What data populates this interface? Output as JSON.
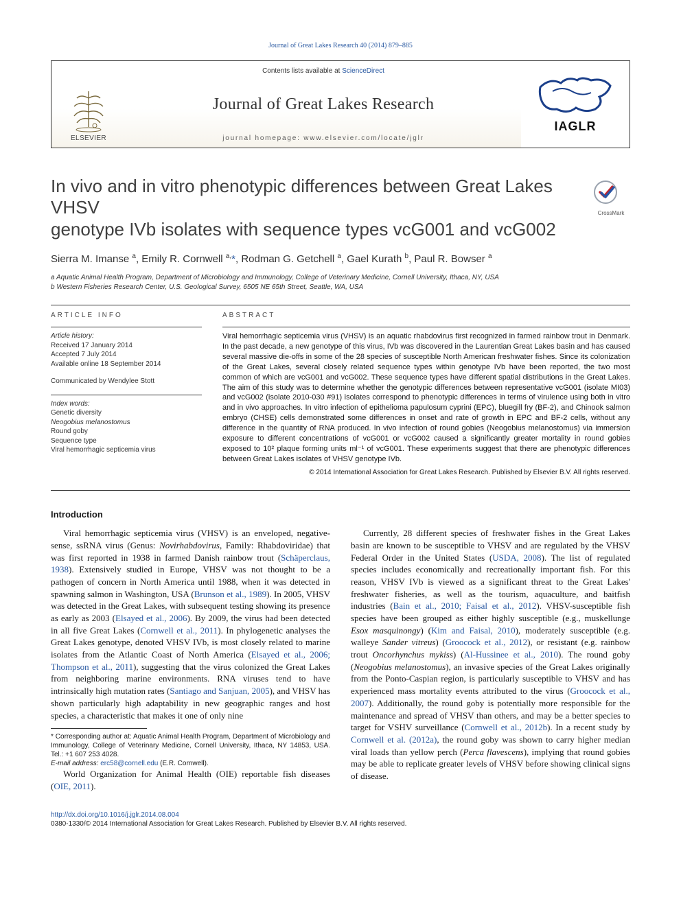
{
  "top_citation": "Journal of Great Lakes Research 40 (2014) 879–885",
  "header": {
    "contents_prefix": "Contents lists available at ",
    "contents_link": "ScienceDirect",
    "journal": "Journal of Great Lakes Research",
    "homepage_prefix": "journal homepage: ",
    "homepage_url": "www.elsevier.com/locate/jglr",
    "elsevier_label": "ELSEVIER",
    "iaglr_label": "IAGLR"
  },
  "crossmark_label": "CrossMark",
  "title_l1": "In vivo and in vitro phenotypic differences between Great Lakes VHSV",
  "title_l2": "genotype IVb isolates with sequence types vcG001 and vcG002",
  "authors_html": "Sierra M. Imanse <sup>a</sup>, Emily R. Cornwell <sup>a,</sup><span class='link'>*</span>, Rodman G. Getchell <sup>a</sup>, Gael Kurath <sup>b</sup>, Paul R. Bowser <sup>a</sup>",
  "affiliations": {
    "a": "a Aquatic Animal Health Program, Department of Microbiology and Immunology, College of Veterinary Medicine, Cornell University, Ithaca, NY, USA",
    "b": "b Western Fisheries Research Center, U.S. Geological Survey, 6505 NE 65th Street, Seattle, WA, USA"
  },
  "article_info": {
    "heading": "article info",
    "history_label": "Article history:",
    "received": "Received 17 January 2014",
    "accepted": "Accepted 7 July 2014",
    "online": "Available online 18 September 2014",
    "communicated": "Communicated by Wendylee Stott",
    "index_label": "Index words:",
    "keywords": [
      "Genetic diversity",
      "Neogobius melanostomus",
      "Round goby",
      "Sequence type",
      "Viral hemorrhagic septicemia virus"
    ]
  },
  "abstract": {
    "heading": "abstract",
    "text": "Viral hemorrhagic septicemia virus (VHSV) is an aquatic rhabdovirus first recognized in farmed rainbow trout in Denmark. In the past decade, a new genotype of this virus, IVb was discovered in the Laurentian Great Lakes basin and has caused several massive die-offs in some of the 28 species of susceptible North American freshwater fishes. Since its colonization of the Great Lakes, several closely related sequence types within genotype IVb have been reported, the two most common of which are vcG001 and vcG002. These sequence types have different spatial distributions in the Great Lakes. The aim of this study was to determine whether the genotypic differences between representative vcG001 (isolate MI03) and vcG002 (isolate 2010-030 #91) isolates correspond to phenotypic differences in terms of virulence using both in vitro and in vivo approaches. In vitro infection of epithelioma papulosum cyprini (EPC), bluegill fry (BF-2), and Chinook salmon embryo (CHSE) cells demonstrated some differences in onset and rate of growth in EPC and BF-2 cells, without any difference in the quantity of RNA produced. In vivo infection of round gobies (Neogobius melanostomus) via immersion exposure to different concentrations of vcG001 or vcG002 caused a significantly greater mortality in round gobies exposed to 10² plaque forming units ml⁻¹ of vcG001. These experiments suggest that there are phenotypic differences between Great Lakes isolates of VHSV genotype IVb.",
    "copyright": "© 2014 International Association for Great Lakes Research. Published by Elsevier B.V. All rights reserved."
  },
  "intro_heading": "Introduction",
  "intro_p1_a": "Viral hemorrhagic septicemia virus (VHSV) is an enveloped, negative-sense, ssRNA virus (Genus: ",
  "intro_p1_b": "Novirhabdovirus",
  "intro_p1_c": ", Family: Rhabdoviridae) that was first reported in 1938 in farmed Danish rainbow trout (",
  "intro_ref1": "Schäperclaus, 1938",
  "intro_p1_d": "). Extensively studied in Europe, VHSV was not thought to be a pathogen of concern in North America until 1988, when it was detected in spawning salmon in Washington, USA (",
  "intro_ref2": "Brunson et al., 1989",
  "intro_p1_e": "). In 2005, VHSV was detected in the Great Lakes, with subsequent testing showing its presence as early as 2003 (",
  "intro_ref3": "Elsayed et al., 2006",
  "intro_p1_f": "). By 2009, the virus had been detected in all five Great Lakes (",
  "intro_ref4": "Cornwell et al., 2011",
  "intro_p1_g": "). In phylogenetic analyses the Great Lakes genotype, denoted VHSV IVb, is most closely related to marine isolates from the Atlantic Coast of North America (",
  "intro_ref5": "Elsayed et al., 2006; Thompson et al., 2011",
  "intro_p1_h": "), suggesting that the virus colonized the Great Lakes from neighboring marine environments. RNA viruses tend to have intrinsically high mutation rates (",
  "intro_ref6": "Santiago and Sanjuan, 2005",
  "intro_p1_i": "), and VHSV has shown particularly high adaptability in new geographic ranges and host species, a characteristic that makes it one of only nine",
  "intro_p2_a": "World Organization for Animal Health (OIE) reportable fish diseases (",
  "intro_ref7": "OIE, 2011",
  "intro_p2_b": ").",
  "intro_p3_a": "Currently, 28 different species of freshwater fishes in the Great Lakes basin are known to be susceptible to VHSV and are regulated by the VHSV Federal Order in the United States (",
  "intro_ref8": "USDA, 2008",
  "intro_p3_b": "). The list of regulated species includes economically and recreationally important fish. For this reason, VHSV IVb is viewed as a significant threat to the Great Lakes' freshwater fisheries, as well as the tourism, aquaculture, and baitfish industries (",
  "intro_ref9": "Bain et al., 2010; Faisal et al., 2012",
  "intro_p3_c": "). VHSV-susceptible fish species have been grouped as either highly susceptible (e.g., muskellunge ",
  "intro_it1": "Esox masquinongy",
  "intro_p3_d": ") (",
  "intro_ref10": "Kim and Faisal, 2010",
  "intro_p3_e": "), moderately susceptible (e.g. walleye ",
  "intro_it2": "Sander vitreus",
  "intro_p3_f": ") (",
  "intro_ref11": "Groocock et al., 2012",
  "intro_p3_g": "), or resistant (e.g. rainbow trout ",
  "intro_it3": "Oncorhynchus mykiss",
  "intro_p3_h": ") (",
  "intro_ref12": "Al-Hussinee et al., 2010",
  "intro_p3_i": "). The round goby (",
  "intro_it4": "Neogobius melanostomus",
  "intro_p3_j": "), an invasive species of the Great Lakes originally from the Ponto-Caspian region, is particularly susceptible to VHSV and has experienced mass mortality events attributed to the virus (",
  "intro_ref13": "Groocock et al., 2007",
  "intro_p3_k": "). Additionally, the round goby is potentially more responsible for the maintenance and spread of VHSV than others, and may be a better species to target for VSHV surveillance (",
  "intro_ref14": "Cornwell et al., 2012b",
  "intro_p3_l": "). In a recent study by ",
  "intro_ref15": "Cornwell et al. (2012a)",
  "intro_p3_m": ", the round goby was shown to carry higher median viral loads than yellow perch (",
  "intro_it5": "Perca flavescens",
  "intro_p3_n": "), implying that round gobies may be able to replicate greater levels of VHSV before showing clinical signs of disease.",
  "footnote": {
    "corr": "* Corresponding author at: Aquatic Animal Health Program, Department of Microbiology and Immunology, College of Veterinary Medicine, Cornell University, Ithaca, NY 14853, USA. Tel.: +1 607 253 4028.",
    "email_label": "E-mail address: ",
    "email": "erc58@cornell.edu",
    "email_suffix": " (E.R. Cornwell)."
  },
  "doi": {
    "url": "http://dx.doi.org/10.1016/j.jglr.2014.08.004",
    "line": "0380-1330/© 2014 International Association for Great Lakes Research. Published by Elsevier B.V. All rights reserved."
  },
  "colors": {
    "link": "#2757a0",
    "text": "#1a1a1a",
    "rule": "#333333",
    "bg": "#ffffff",
    "header_gradient_bottom": "#f7f4ec"
  }
}
